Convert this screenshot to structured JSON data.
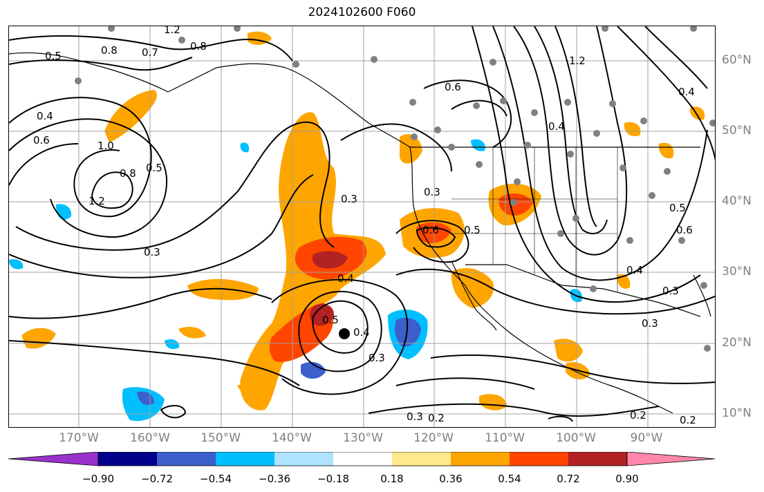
{
  "title": "2024102600 F060",
  "colors": {
    "pos_1": "#ffe98a",
    "pos_2": "#ffa500",
    "pos_3": "#ff4500",
    "pos_4": "#b22222",
    "pos_5": "#ff88aa",
    "neg_1": "#aee4ff",
    "neg_2": "#00bfff",
    "neg_3": "#3c5fcc",
    "neg_4": "#00008b",
    "neg_5": "#9932cc",
    "contour": "#000000",
    "grid": "#a0a0a0",
    "station_dot": "#808080",
    "center_dot": "#000000",
    "coastline": "#000000"
  },
  "axes": {
    "lon_labels": [
      "170°W",
      "160°W",
      "150°W",
      "140°W",
      "130°W",
      "120°W",
      "110°W",
      "100°W",
      "90°W"
    ],
    "lat_labels": [
      "60°N",
      "50°N",
      "40°N",
      "30°N",
      "20°N",
      "10°N"
    ]
  },
  "colorbar": {
    "ticks": [
      "−0.90",
      "−0.72",
      "−0.54",
      "−0.36",
      "−0.18",
      "0.18",
      "0.36",
      "0.54",
      "0.72",
      "0.90"
    ],
    "segments": [
      "#9932cc",
      "#00008b",
      "#3c5fcc",
      "#00bfff",
      "#aee4ff",
      "#ffffff",
      "#ffe98a",
      "#ffa500",
      "#ff4500",
      "#b22222",
      "#ff88aa"
    ]
  },
  "contour_labels": [
    "0.5",
    "0.8",
    "0.7",
    "1.2",
    "0.8",
    "0.4",
    "0.6",
    "1.0",
    "0.8",
    "0.5",
    "1.2",
    "0.3",
    "0.3",
    "0.6",
    "0.3",
    "0.4",
    "0.5",
    "0.4",
    "0.3",
    "0.6",
    "0.5",
    "1.2",
    "0.4",
    "0.6",
    "0.4",
    "0.3",
    "0.3",
    "0.3",
    "0.2",
    "0.2",
    "0.2",
    "0.5",
    "0.4"
  ]
}
